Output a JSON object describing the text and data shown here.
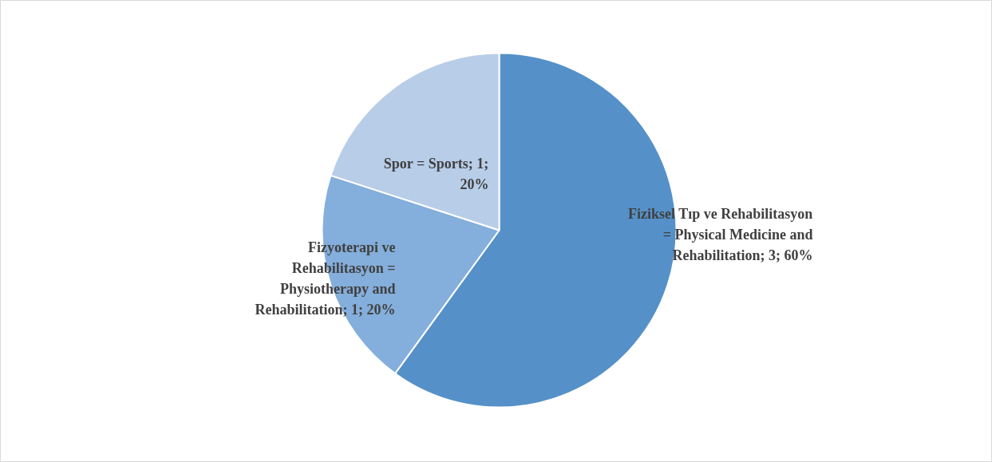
{
  "chart_data": {
    "type": "pie",
    "categories": [
      "Fiziksel Tıp ve Rehabilitasyon = Physical Medicine and Rehabilitation",
      "Fizyoterapi ve Rehabilitasyon = Physiotherapy and Rehabilitation",
      "Spor = Sports"
    ],
    "values": [
      3,
      1,
      1
    ],
    "value_labels": [
      "3; 60%",
      "1; 20%",
      "1; 20%"
    ],
    "colors": [
      "#5591c8",
      "#84aedb",
      "#b8cde8"
    ]
  }
}
